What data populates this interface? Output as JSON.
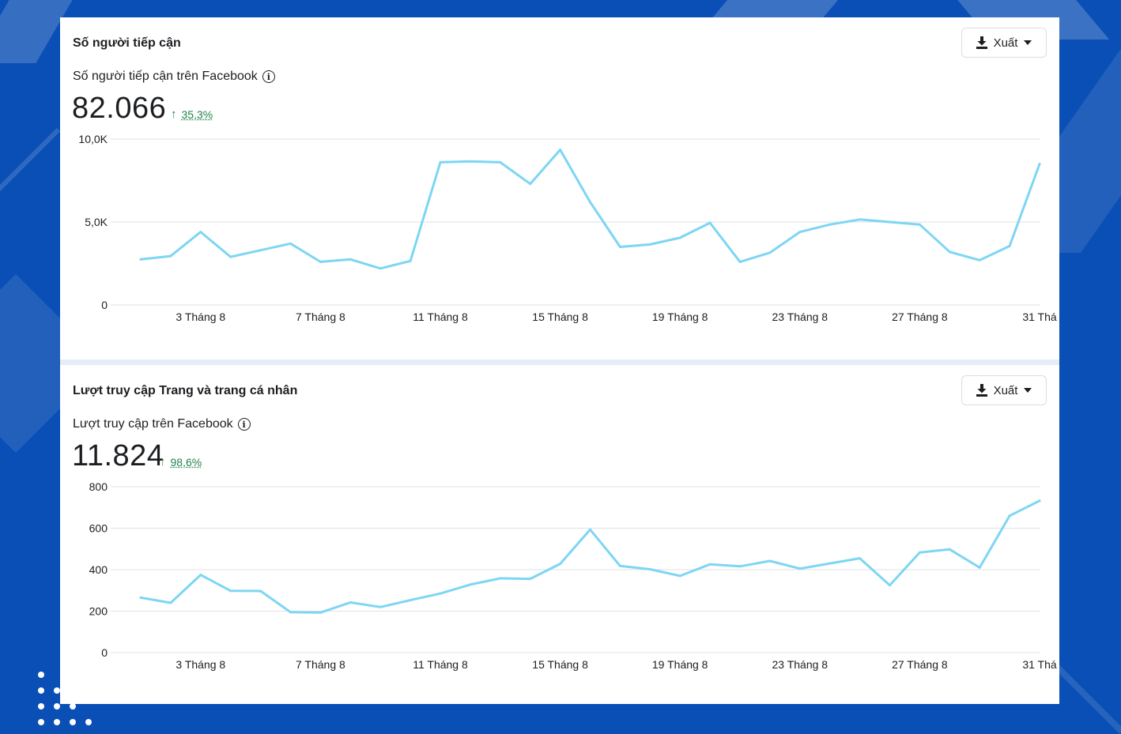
{
  "theme": {
    "line_color": "#7dd6f3",
    "grid_color": "#dfe1e5",
    "positive_color": "#1e8449"
  },
  "panels": [
    {
      "title": "Số người tiếp cận",
      "export_label": "Xuất",
      "metric_label": "Số người tiếp cận trên Facebook",
      "metric_value": "82.066",
      "change_arrow": "↑",
      "change_value": "35,3%"
    },
    {
      "title": "Lượt truy cập Trang và trang cá nhân",
      "export_label": "Xuất",
      "metric_label": "Lượt truy cập trên Facebook",
      "metric_value": "11.824",
      "change_arrow": "↑",
      "change_value": "98,6%"
    }
  ],
  "chart_data": [
    {
      "type": "line",
      "title": "Số người tiếp cận trên Facebook",
      "x": [
        1,
        2,
        3,
        4,
        5,
        6,
        7,
        8,
        9,
        10,
        11,
        12,
        13,
        14,
        15,
        16,
        17,
        18,
        19,
        20,
        21,
        22,
        23,
        24,
        25,
        26,
        27,
        28,
        29,
        30,
        31
      ],
      "x_ticks": [
        {
          "x": 3,
          "label": "3 Tháng 8"
        },
        {
          "x": 7,
          "label": "7 Tháng 8"
        },
        {
          "x": 11,
          "label": "11 Tháng 8"
        },
        {
          "x": 15,
          "label": "15 Tháng 8"
        },
        {
          "x": 19,
          "label": "19 Tháng 8"
        },
        {
          "x": 23,
          "label": "23 Tháng 8"
        },
        {
          "x": 27,
          "label": "27 Tháng 8"
        },
        {
          "x": 31,
          "label": "31 Thá"
        }
      ],
      "y_ticks": [
        {
          "value": 0,
          "label": "0"
        },
        {
          "value": 5000,
          "label": "5,0K"
        },
        {
          "value": 10000,
          "label": "10,0K"
        }
      ],
      "ylim": [
        0,
        10000
      ],
      "grid": true,
      "values": [
        2750,
        2950,
        4400,
        2900,
        3300,
        3700,
        2600,
        2750,
        2200,
        2650,
        8600,
        8650,
        8600,
        7300,
        9350,
        6200,
        3500,
        3650,
        4050,
        4950,
        2600,
        3150,
        4400,
        4850,
        5150,
        5000,
        4850,
        3200,
        2700,
        3550,
        8500
      ]
    },
    {
      "type": "line",
      "title": "Lượt truy cập trên Facebook",
      "x": [
        1,
        2,
        3,
        4,
        5,
        6,
        7,
        8,
        9,
        10,
        11,
        12,
        13,
        14,
        15,
        16,
        17,
        18,
        19,
        20,
        21,
        22,
        23,
        24,
        25,
        26,
        27,
        28,
        29,
        30,
        31
      ],
      "x_ticks": [
        {
          "x": 3,
          "label": "3 Tháng 8"
        },
        {
          "x": 7,
          "label": "7 Tháng 8"
        },
        {
          "x": 11,
          "label": "11 Tháng 8"
        },
        {
          "x": 15,
          "label": "15 Tháng 8"
        },
        {
          "x": 19,
          "label": "19 Tháng 8"
        },
        {
          "x": 23,
          "label": "23 Tháng 8"
        },
        {
          "x": 27,
          "label": "27 Tháng 8"
        },
        {
          "x": 31,
          "label": "31 Thá"
        }
      ],
      "y_ticks": [
        {
          "value": 0,
          "label": "0"
        },
        {
          "value": 200,
          "label": "200"
        },
        {
          "value": 400,
          "label": "400"
        },
        {
          "value": 600,
          "label": "600"
        },
        {
          "value": 800,
          "label": "800"
        }
      ],
      "ylim": [
        0,
        800
      ],
      "grid": true,
      "values": [
        265,
        240,
        375,
        298,
        297,
        195,
        193,
        242,
        220,
        253,
        285,
        328,
        358,
        356,
        428,
        593,
        418,
        402,
        370,
        426,
        416,
        442,
        405,
        430,
        455,
        325,
        483,
        498,
        410,
        660,
        732
      ]
    }
  ]
}
